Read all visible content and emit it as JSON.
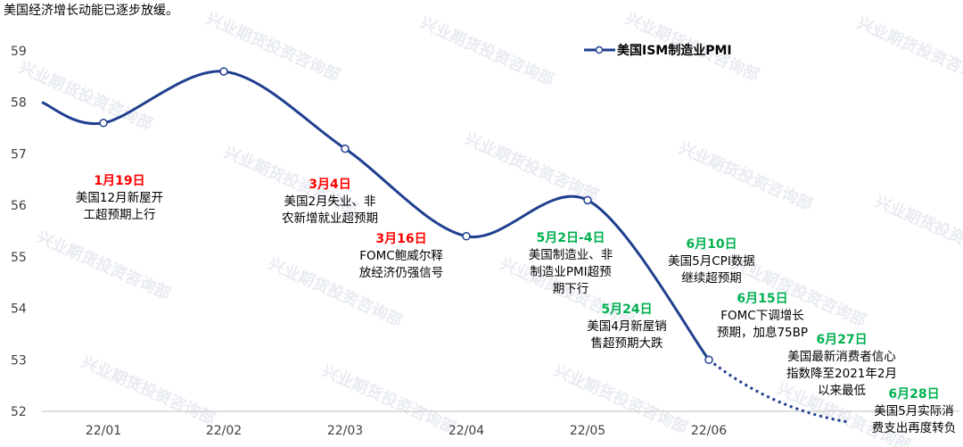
{
  "subtitle": "美国经济增长动能已逐步放缓。",
  "watermark": "兴业期货投资咨询部",
  "chart_data": {
    "type": "line",
    "title": "",
    "xlabel": "",
    "ylabel": "",
    "ylim": [
      52,
      59
    ],
    "yticks": [
      52,
      53,
      54,
      55,
      56,
      57,
      58,
      59
    ],
    "categories": [
      "22/01",
      "22/02",
      "22/03",
      "22/04",
      "22/05",
      "22/06"
    ],
    "legend": {
      "placement": "top-center"
    },
    "grid": false,
    "series": [
      {
        "name": "美国ISM制造业PMI",
        "color": "#1f3f8f",
        "values": [
          {
            "x": "21/12",
            "y": 58.0,
            "marker": false
          },
          {
            "x": "22/01",
            "y": 57.6,
            "marker": true
          },
          {
            "x": "22/02",
            "y": 58.6,
            "marker": true
          },
          {
            "x": "22/03",
            "y": 57.1,
            "marker": true
          },
          {
            "x": "22/04",
            "y": 55.4,
            "marker": true
          },
          {
            "x": "22/05",
            "y": 56.1,
            "marker": true
          },
          {
            "x": "22/06",
            "y": 53.0,
            "marker": true
          }
        ],
        "projection": [
          {
            "x": "22/06",
            "y": 53.0
          },
          {
            "x": "22/07",
            "y": 51.9
          }
        ]
      }
    ],
    "annotations": [
      {
        "date": "1月19日",
        "color": "#ff0000",
        "lines": [
          "美国12月新屋开",
          "工超预期上行"
        ]
      },
      {
        "date": "3月4日",
        "color": "#ff0000",
        "lines": [
          "美国2月失业、非",
          "农新增就业超预期"
        ]
      },
      {
        "date": "3月16日",
        "color": "#ff0000",
        "lines": [
          "FOMC鲍威尔释",
          "放经济仍强信号"
        ]
      },
      {
        "date": "5月2日-4日",
        "color": "#00b050",
        "lines": [
          "美国制造业、非",
          "制造业PMI超预",
          "期下行"
        ]
      },
      {
        "date": "5月24日",
        "color": "#00b050",
        "lines": [
          "美国4月新屋销",
          "售超预期大跌"
        ]
      },
      {
        "date": "6月10日",
        "color": "#00b050",
        "lines": [
          "美国5月CPI数据",
          "继续超预期"
        ]
      },
      {
        "date": "6月15日",
        "color": "#00b050",
        "lines": [
          "FOMC下调增长",
          "预期，加息75BP"
        ]
      },
      {
        "date": "6月27日",
        "color": "#00b050",
        "lines": [
          "美国最新消费者信心",
          "指数降至2021年2月",
          "以来最低"
        ]
      },
      {
        "date": "6月28日",
        "color": "#00b050",
        "lines": [
          "美国5月实际消",
          "费支出再度转负"
        ]
      }
    ]
  }
}
